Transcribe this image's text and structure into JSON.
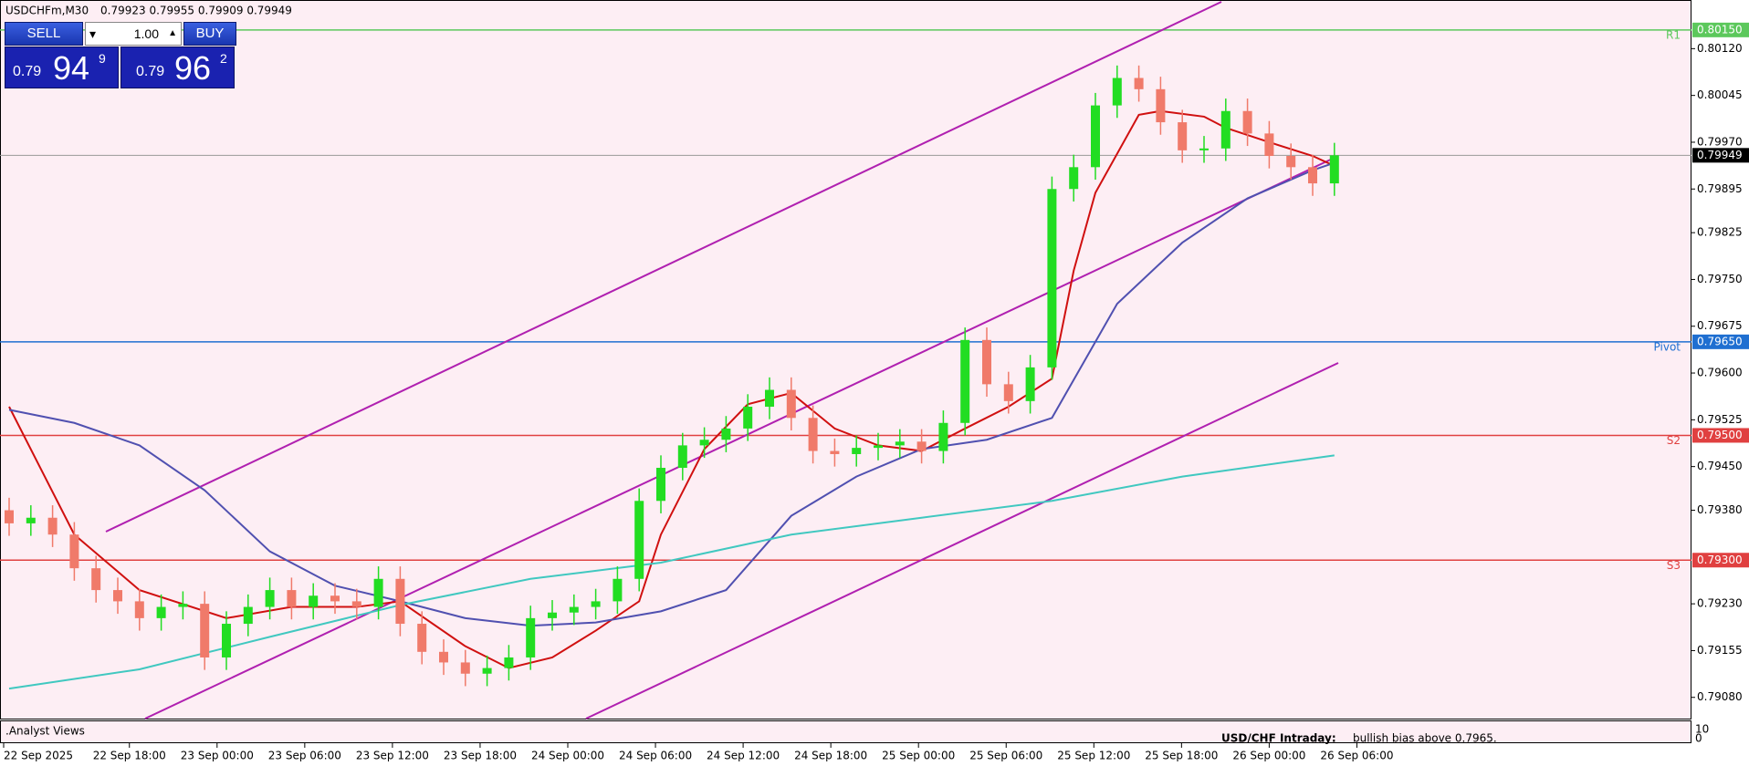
{
  "header": {
    "symbol": "USDCHFm,M30",
    "quotes": "0.79923 0.79955 0.79909 0.79949"
  },
  "trade_panel": {
    "sell": "SELL",
    "buy": "BUY",
    "lots": "1.00",
    "bid": {
      "big": "0.79",
      "main": "94",
      "small": "9"
    },
    "ask": {
      "big": "0.79",
      "main": "96",
      "small": "2"
    }
  },
  "indicator_window": {
    "name": ".Analyst Views",
    "headline": "USD/CHF Intraday:",
    "text": "bullish bias above 0.7965.",
    "scale_top": "10",
    "scale_bottom": "0"
  },
  "chart_data": {
    "type": "candlestick",
    "up_color": "#22dd22",
    "down_color": "#f07a6a",
    "ylim": [
      0.79046,
      0.80198
    ],
    "yticks": [
      {
        "value": 0.8012,
        "label": "0.80120"
      },
      {
        "value": 0.80045,
        "label": "0.80045"
      },
      {
        "value": 0.7997,
        "label": "0.79970"
      },
      {
        "value": 0.79895,
        "label": "0.79895"
      },
      {
        "value": 0.79825,
        "label": "0.79825"
      },
      {
        "value": 0.7975,
        "label": "0.79750"
      },
      {
        "value": 0.79675,
        "label": "0.79675"
      },
      {
        "value": 0.796,
        "label": "0.79600"
      },
      {
        "value": 0.79525,
        "label": "0.79525"
      },
      {
        "value": 0.7945,
        "label": "0.79450"
      },
      {
        "value": 0.7938,
        "label": "0.79380"
      },
      {
        "value": 0.7923,
        "label": "0.79230"
      },
      {
        "value": 0.79155,
        "label": "0.79155"
      },
      {
        "value": 0.7908,
        "label": "0.79080"
      }
    ],
    "time_labels": [
      "22 Sep 2025",
      "22 Sep 18:00",
      "23 Sep 00:00",
      "23 Sep 06:00",
      "23 Sep 12:00",
      "23 Sep 18:00",
      "24 Sep 00:00",
      "24 Sep 06:00",
      "24 Sep 12:00",
      "24 Sep 18:00",
      "25 Sep 00:00",
      "25 Sep 06:00",
      "25 Sep 12:00",
      "25 Sep 18:00",
      "26 Sep 00:00",
      "26 Sep 06:00"
    ],
    "open": [
      0.7938,
      0.79359,
      0.79368,
      0.79341,
      0.79287,
      0.79252,
      0.79234,
      0.79207,
      0.79225,
      0.7923,
      0.79144,
      0.79198,
      0.79225,
      0.79252,
      0.79225,
      0.79243,
      0.79234,
      0.79225,
      0.7927,
      0.79198,
      0.79153,
      0.79136,
      0.79118,
      0.79127,
      0.79144,
      0.79207,
      0.79216,
      0.79225,
      0.79234,
      0.7927,
      0.79395,
      0.79448,
      0.79484,
      0.79493,
      0.79511,
      0.79546,
      0.79573,
      0.79528,
      0.79475,
      0.7947,
      0.7948,
      0.79484,
      0.7949,
      0.79475,
      0.7952,
      0.79653,
      0.79582,
      0.79555,
      0.79609,
      0.79895,
      0.7993,
      0.80029,
      0.80073,
      0.80055,
      0.80002,
      0.79957,
      0.7996,
      0.8002,
      0.79984,
      0.79948,
      0.7993,
      0.79904
    ],
    "high": [
      0.794,
      0.79388,
      0.79388,
      0.79361,
      0.79307,
      0.79272,
      0.79254,
      0.79245,
      0.7925,
      0.7925,
      0.79218,
      0.79245,
      0.79272,
      0.79272,
      0.79263,
      0.79263,
      0.79254,
      0.7929,
      0.7929,
      0.79218,
      0.79173,
      0.79156,
      0.79147,
      0.79164,
      0.79227,
      0.79236,
      0.79245,
      0.79254,
      0.7929,
      0.79415,
      0.79468,
      0.79504,
      0.79513,
      0.79531,
      0.79566,
      0.79593,
      0.79593,
      0.79548,
      0.79495,
      0.795,
      0.79504,
      0.7951,
      0.7951,
      0.7954,
      0.79673,
      0.79673,
      0.79602,
      0.79629,
      0.79915,
      0.7995,
      0.80049,
      0.80093,
      0.80093,
      0.80075,
      0.80022,
      0.7998,
      0.8004,
      0.8004,
      0.80004,
      0.79968,
      0.7995,
      0.79969
    ],
    "low": [
      0.79339,
      0.79339,
      0.79321,
      0.79267,
      0.79232,
      0.79214,
      0.79187,
      0.79187,
      0.79205,
      0.79124,
      0.79124,
      0.79178,
      0.79205,
      0.79205,
      0.79205,
      0.79214,
      0.79205,
      0.79205,
      0.79178,
      0.79133,
      0.79116,
      0.79098,
      0.79098,
      0.79107,
      0.79124,
      0.79187,
      0.79196,
      0.79205,
      0.79214,
      0.7925,
      0.79375,
      0.79428,
      0.79464,
      0.79473,
      0.79491,
      0.79526,
      0.79508,
      0.79455,
      0.7945,
      0.7945,
      0.7946,
      0.79464,
      0.79455,
      0.79455,
      0.795,
      0.79562,
      0.79535,
      0.79535,
      0.79589,
      0.79875,
      0.7991,
      0.80009,
      0.80035,
      0.79982,
      0.79937,
      0.79937,
      0.7994,
      0.79964,
      0.79928,
      0.7991,
      0.79884,
      0.79884
    ],
    "close": [
      0.79359,
      0.79368,
      0.79341,
      0.79287,
      0.79252,
      0.79234,
      0.79207,
      0.79225,
      0.7923,
      0.79144,
      0.79198,
      0.79225,
      0.79252,
      0.79225,
      0.79243,
      0.79234,
      0.79225,
      0.7927,
      0.79198,
      0.79153,
      0.79136,
      0.79118,
      0.79127,
      0.79144,
      0.79207,
      0.79216,
      0.79225,
      0.79234,
      0.7927,
      0.79395,
      0.79448,
      0.79484,
      0.79493,
      0.79511,
      0.79546,
      0.79573,
      0.79528,
      0.79475,
      0.7947,
      0.7948,
      0.79484,
      0.7949,
      0.79475,
      0.7952,
      0.79653,
      0.79582,
      0.79555,
      0.79609,
      0.79895,
      0.7993,
      0.80029,
      0.80073,
      0.80055,
      0.80002,
      0.79957,
      0.7996,
      0.8002,
      0.79984,
      0.79948,
      0.7993,
      0.79904,
      0.79949
    ],
    "moving_averages": [
      {
        "color": "#d01010",
        "candle_index": [
          0,
          3,
          6,
          10,
          13,
          16,
          18,
          21,
          23,
          25,
          27,
          29,
          30,
          32,
          34,
          36,
          38,
          40,
          42,
          44,
          46,
          48,
          49,
          50,
          52,
          53,
          55,
          56,
          58,
          60,
          61
        ],
        "values": [
          0.79546,
          0.79341,
          0.79252,
          0.79207,
          0.79225,
          0.79225,
          0.79234,
          0.79162,
          0.79127,
          0.79144,
          0.79187,
          0.79234,
          0.79341,
          0.79478,
          0.7955,
          0.79568,
          0.79511,
          0.79484,
          0.79475,
          0.79511,
          0.79546,
          0.79591,
          0.79764,
          0.79889,
          0.80014,
          0.8002,
          0.80011,
          0.79993,
          0.7997,
          0.79948,
          0.79932
        ]
      },
      {
        "color": "#5050b0",
        "candle_index": [
          0,
          3,
          6,
          9,
          12,
          15,
          18,
          21,
          24,
          27,
          30,
          33,
          36,
          39,
          42,
          45,
          48,
          51,
          54,
          57,
          60,
          61
        ],
        "values": [
          0.79541,
          0.7952,
          0.79484,
          0.79412,
          0.79314,
          0.79259,
          0.79234,
          0.79207,
          0.79195,
          0.792,
          0.79218,
          0.79252,
          0.79371,
          0.79434,
          0.79478,
          0.79493,
          0.79528,
          0.79711,
          0.79809,
          0.7988,
          0.79925,
          0.79937
        ]
      },
      {
        "color": "#40c8c0",
        "candle_index": [
          0,
          6,
          12,
          18,
          24,
          30,
          36,
          42,
          48,
          54,
          61
        ],
        "values": [
          0.79094,
          0.79125,
          0.79177,
          0.79228,
          0.7927,
          0.79296,
          0.79341,
          0.79368,
          0.79395,
          0.79434,
          0.79468
        ]
      }
    ],
    "levels": [
      {
        "name": "R1",
        "price": {
          "value": 0.8015,
          "label": "0.80150"
        },
        "color": "#5cc85c"
      },
      {
        "name": "Pivot",
        "price": {
          "value": 0.7965,
          "label": "0.79650"
        },
        "color": "#1f6fd1"
      },
      {
        "name": "S2",
        "price": {
          "value": 0.795,
          "label": "0.79500"
        },
        "color": "#e04040"
      },
      {
        "name": "S3",
        "price": {
          "value": 0.793,
          "label": "0.79300"
        },
        "color": "#e04040"
      }
    ],
    "last_price": 0.79949
  }
}
